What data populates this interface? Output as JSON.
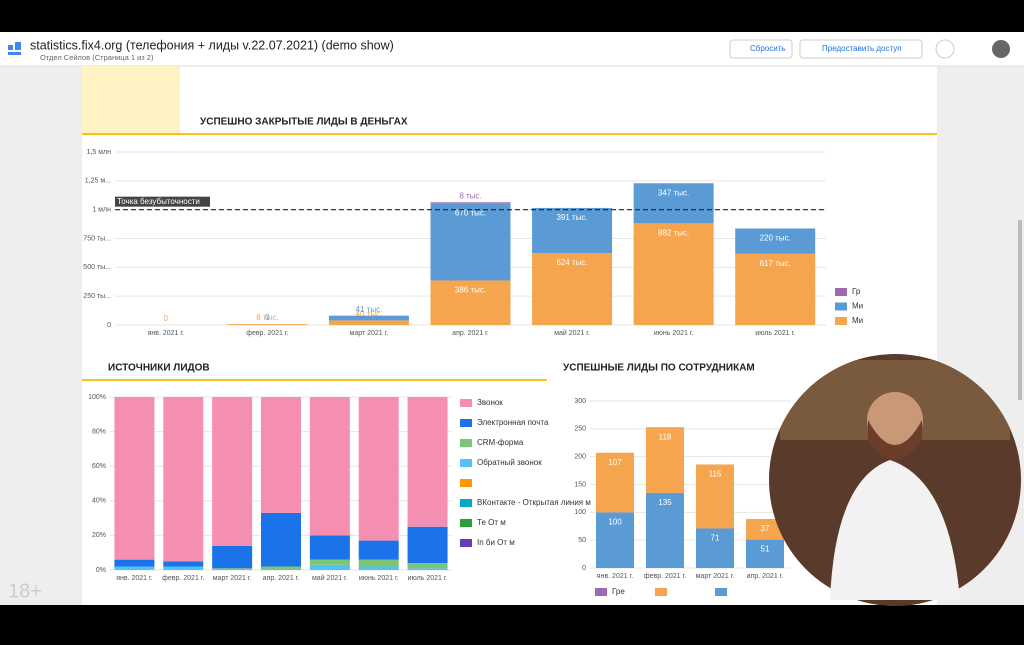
{
  "header": {
    "title": "statistics.fix4.org (телефония + лиды v.22.07.2021) (demo show)",
    "breadcrumb": "Отдел Сейлов (Страница 1 из 2)",
    "reset": "Сбросить",
    "share": "Предоставить доступ"
  },
  "watermark": "18+",
  "chart_data": [
    {
      "type": "stacked_bar",
      "title": "УСПЕШНО ЗАКРЫТЫЕ ЛИДЫ В ДЕНЬГАХ",
      "categories": [
        "янв. 2021 г.",
        "февр. 2021 г.",
        "март 2021 г.",
        "апр. 2021 г.",
        "май 2021 г.",
        "июнь 2021 г.",
        "июль 2021 г."
      ],
      "ylim": [
        0,
        1500000
      ],
      "yticks": [
        0,
        {
          "value": 250000,
          "label": "250 ты..."
        },
        {
          "value": 500000,
          "label": "500 ты..."
        },
        {
          "value": 750000,
          "label": "750 ты..."
        },
        {
          "value": 1000000,
          "label": "1 млн"
        },
        {
          "value": 1250000,
          "label": "1,25 м..."
        },
        {
          "value": 1500000,
          "label": "1,5 млн"
        }
      ],
      "grid": true,
      "legend": "right",
      "reference_line": {
        "value": 1000000,
        "label": "Точка безубыточности"
      },
      "series": [
        {
          "name": "Ми",
          "color": "#f6a54f",
          "values": [
            0,
            8000,
            40000,
            386000,
            624000,
            882000,
            617000
          ],
          "value_labels": [
            "0",
            "8 тыс.",
            "40 тыс.",
            "386 тыс.",
            "624 тыс.",
            "882 тыс.",
            "617 тыс."
          ]
        },
        {
          "name": "Ми",
          "color": "#5b9bd5",
          "values": [
            null,
            0,
            41000,
            670000,
            391000,
            347000,
            220000
          ],
          "value_labels": [
            null,
            "0",
            "41 тыс.",
            "670 тыс.",
            "391 тыс.",
            "347 тыс.",
            "220 тыс."
          ]
        },
        {
          "name": "Гр",
          "color": "#9e69af",
          "values": [
            null,
            null,
            null,
            8000,
            null,
            null,
            null
          ],
          "value_labels": [
            null,
            null,
            null,
            "8 тыс.",
            null,
            null,
            null
          ]
        }
      ]
    },
    {
      "type": "stacked_bar",
      "title": "ИСТОЧНИКИ ЛИДОВ",
      "categories": [
        "янв. 2021 г.",
        "февр. 2021 г.",
        "март 2021 г.",
        "апр. 2021 г.",
        "май 2021 г.",
        "июнь 2021 г.",
        "июль 2021 г."
      ],
      "ylim": [
        0,
        100
      ],
      "yticks": [
        {
          "value": 0,
          "label": "0%"
        },
        {
          "value": 20,
          "label": "20%"
        },
        {
          "value": 40,
          "label": "40%"
        },
        {
          "value": 60,
          "label": "60%"
        },
        {
          "value": 80,
          "label": "80%"
        },
        {
          "value": 100,
          "label": "100%"
        }
      ],
      "grid": true,
      "legend": "right",
      "series": [
        {
          "name": "In би От м",
          "color": "#673ab7",
          "values": [
            0,
            0,
            0,
            0,
            0,
            0,
            0
          ]
        },
        {
          "name": "Те От м",
          "color": "#2e9d3a",
          "values": [
            0,
            0,
            0,
            0,
            0,
            0,
            0
          ]
        },
        {
          "name": "ВКонтакте - Открытая линия м",
          "color": "#00acc1",
          "values": [
            0,
            0,
            0,
            0,
            0,
            0,
            0
          ]
        },
        {
          "name": null,
          "color": "#ff9800",
          "values": [
            0,
            0,
            0,
            0,
            0,
            0,
            0
          ]
        },
        {
          "name": "Обратный звонок",
          "color": "#4fc3f7",
          "values": [
            2,
            2,
            0,
            0,
            3,
            2,
            1
          ]
        },
        {
          "name": "CRM-форма",
          "color": "#7cc576",
          "values": [
            0,
            0,
            1,
            2,
            3,
            4,
            3
          ]
        },
        {
          "name": "Электронная почта",
          "color": "#1a73e8",
          "values": [
            4,
            3,
            13,
            31,
            14,
            11,
            21
          ]
        },
        {
          "name": "Звонок",
          "color": "#f48fb1",
          "values": [
            94,
            95,
            86,
            67,
            80,
            83,
            75
          ]
        }
      ]
    },
    {
      "type": "stacked_bar",
      "title": "УСПЕШНЫЕ ЛИДЫ ПО СОТРУДНИКАМ",
      "categories": [
        "янв. 2021 г.",
        "февр. 2021 г.",
        "март 2021 г.",
        "апр. 2021 г."
      ],
      "ylim": [
        0,
        300
      ],
      "yticks": [
        0,
        50,
        100,
        150,
        200,
        250,
        300
      ],
      "grid": true,
      "legend": "bottom",
      "data_labels": true,
      "series": [
        {
          "name": null,
          "color": "#5b9bd5",
          "values": [
            100,
            135,
            71,
            51
          ]
        },
        {
          "name": null,
          "color": "#f6a54f",
          "values": [
            107,
            118,
            115,
            37
          ]
        },
        {
          "name": "Гре",
          "color": "#9e69af",
          "values": [
            null,
            null,
            null,
            null
          ]
        }
      ]
    }
  ]
}
